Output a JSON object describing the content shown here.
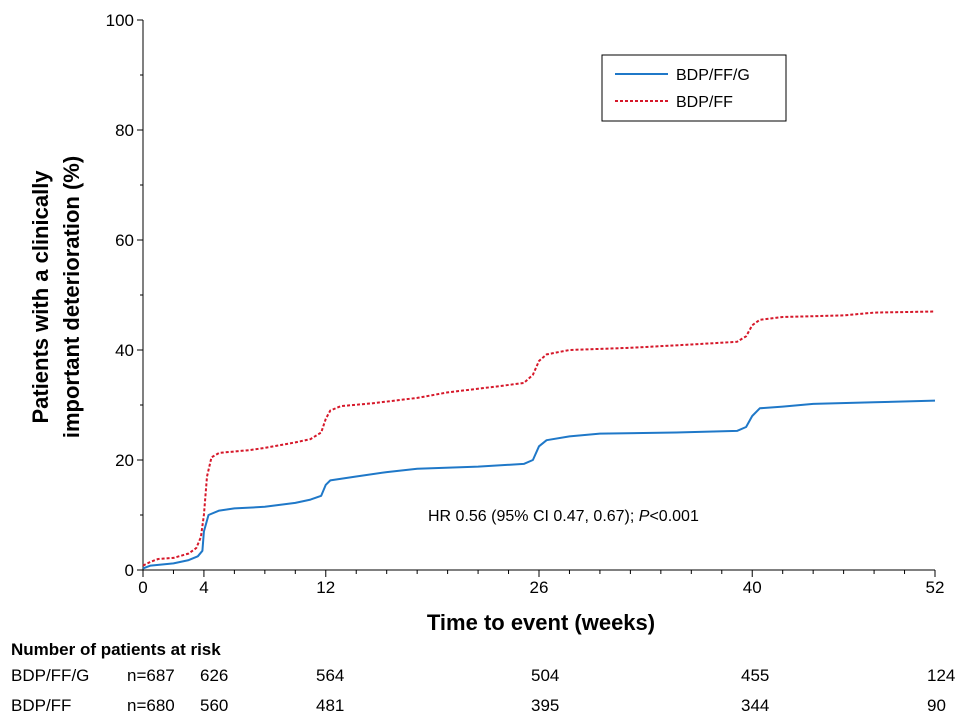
{
  "chart_data": {
    "type": "line",
    "ylabel_line1": "Patients with a clinically",
    "ylabel_line2": "important deterioration (%)",
    "xlabel": "Time to event (weeks)",
    "xlim": [
      0,
      52
    ],
    "ylim": [
      0,
      100
    ],
    "x_ticks": [
      0,
      4,
      12,
      26,
      40,
      52
    ],
    "y_ticks": [
      0,
      20,
      40,
      60,
      80,
      100
    ],
    "legend_position": "top-right",
    "annotation": {
      "text": "HR 0.56 (95% CI 0.47, 0.67); ",
      "italic": "P",
      "suffix": "<0.001"
    },
    "series": [
      {
        "name": "BDP/FF/G",
        "color": "#1f78c8",
        "style": "solid",
        "points": [
          [
            0,
            0.3
          ],
          [
            0.5,
            0.8
          ],
          [
            2,
            1.2
          ],
          [
            3,
            1.8
          ],
          [
            3.6,
            2.5
          ],
          [
            3.9,
            3.5
          ],
          [
            4,
            7
          ],
          [
            4.3,
            10
          ],
          [
            5,
            10.8
          ],
          [
            6,
            11.2
          ],
          [
            8,
            11.5
          ],
          [
            10,
            12.2
          ],
          [
            11,
            12.8
          ],
          [
            11.7,
            13.5
          ],
          [
            12,
            15.5
          ],
          [
            12.3,
            16.3
          ],
          [
            14,
            17
          ],
          [
            16,
            17.8
          ],
          [
            18,
            18.4
          ],
          [
            22,
            18.8
          ],
          [
            25,
            19.3
          ],
          [
            25.6,
            20
          ],
          [
            26,
            22.5
          ],
          [
            26.5,
            23.6
          ],
          [
            28,
            24.3
          ],
          [
            30,
            24.8
          ],
          [
            35,
            25
          ],
          [
            39,
            25.3
          ],
          [
            39.6,
            26
          ],
          [
            40,
            28
          ],
          [
            40.5,
            29.4
          ],
          [
            42,
            29.7
          ],
          [
            44,
            30.2
          ],
          [
            48,
            30.5
          ],
          [
            52,
            30.8
          ]
        ]
      },
      {
        "name": "BDP/FF",
        "color": "#d6182a",
        "style": "dashed",
        "points": [
          [
            0,
            0.8
          ],
          [
            0.5,
            1.5
          ],
          [
            1,
            2
          ],
          [
            2,
            2.2
          ],
          [
            3,
            3
          ],
          [
            3.5,
            4
          ],
          [
            3.8,
            6
          ],
          [
            4,
            10
          ],
          [
            4.2,
            17
          ],
          [
            4.5,
            20.5
          ],
          [
            5,
            21.3
          ],
          [
            7,
            21.8
          ],
          [
            8,
            22.2
          ],
          [
            10,
            23.2
          ],
          [
            11,
            23.8
          ],
          [
            11.7,
            25
          ],
          [
            12,
            27.5
          ],
          [
            12.3,
            29
          ],
          [
            13,
            29.8
          ],
          [
            15,
            30.3
          ],
          [
            18,
            31.3
          ],
          [
            20,
            32.3
          ],
          [
            23,
            33.3
          ],
          [
            25,
            34
          ],
          [
            25.6,
            35.5
          ],
          [
            26,
            38
          ],
          [
            26.5,
            39.2
          ],
          [
            28,
            40
          ],
          [
            32,
            40.4
          ],
          [
            36,
            41
          ],
          [
            39,
            41.5
          ],
          [
            39.6,
            42.5
          ],
          [
            40,
            44.5
          ],
          [
            40.5,
            45.5
          ],
          [
            42,
            46
          ],
          [
            46,
            46.3
          ],
          [
            48,
            46.8
          ],
          [
            52,
            47
          ]
        ]
      }
    ]
  },
  "risk_table": {
    "title": "Number of patients at risk",
    "rows": [
      {
        "label": "BDP/FF/G",
        "n": "n=687",
        "values": [
          "626",
          "564",
          "504",
          "455",
          "124"
        ]
      },
      {
        "label": "BDP/FF",
        "n": "n=680",
        "values": [
          "560",
          "481",
          "395",
          "344",
          "90"
        ]
      }
    ]
  }
}
